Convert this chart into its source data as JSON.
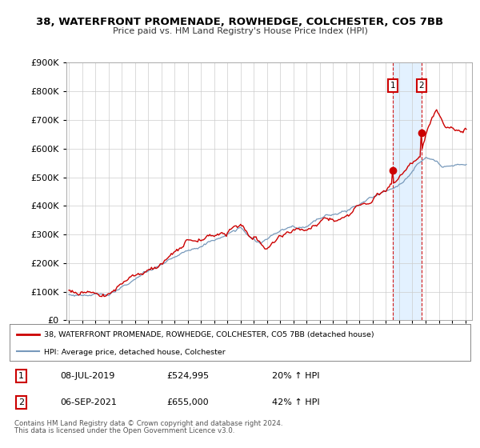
{
  "title_line1": "38, WATERFRONT PROMENADE, ROWHEDGE, COLCHESTER, CO5 7BB",
  "title_line2": "Price paid vs. HM Land Registry's House Price Index (HPI)",
  "legend_line1": "38, WATERFRONT PROMENADE, ROWHEDGE, COLCHESTER, CO5 7BB (detached house)",
  "legend_line2": "HPI: Average price, detached house, Colchester",
  "footnote_line1": "Contains HM Land Registry data © Crown copyright and database right 2024.",
  "footnote_line2": "This data is licensed under the Open Government Licence v3.0.",
  "sale1_date": "08-JUL-2019",
  "sale1_price": "£524,995",
  "sale1_hpi": "20% ↑ HPI",
  "sale2_date": "06-SEP-2021",
  "sale2_price": "£655,000",
  "sale2_hpi": "42% ↑ HPI",
  "sale1_year": 2019.52,
  "sale1_value": 524995,
  "sale2_year": 2021.68,
  "sale2_value": 655000,
  "red_color": "#cc0000",
  "blue_color": "#7799bb",
  "shade_color": "#ddeeff",
  "background_color": "#ffffff",
  "grid_color": "#cccccc",
  "ylim_max": 900000,
  "xlim_start": 1994.8,
  "xlim_end": 2025.5
}
